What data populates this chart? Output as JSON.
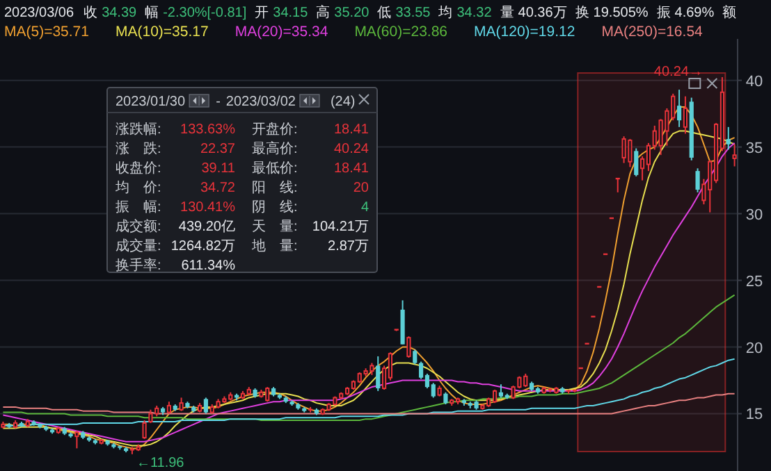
{
  "chart_data": {
    "type": "candlestick",
    "categories": [
      null,
      null,
      null,
      null,
      null,
      null,
      null,
      null,
      null,
      null,
      null,
      null,
      null,
      null,
      null,
      null,
      null,
      null,
      null,
      null,
      null,
      null,
      null,
      null,
      null,
      null,
      null,
      null,
      null,
      null,
      null,
      null,
      null,
      null,
      null,
      null,
      null,
      null,
      null,
      null,
      null,
      null,
      null,
      null,
      null,
      null,
      null,
      null,
      null,
      null,
      null,
      null,
      null,
      null,
      null,
      null,
      null,
      null,
      null,
      null,
      null,
      null,
      null,
      null,
      null,
      null,
      null,
      null,
      null,
      null,
      null,
      null,
      null,
      null,
      null,
      null,
      null,
      null,
      null,
      null,
      null,
      null,
      null,
      null,
      null,
      null,
      null,
      null,
      null,
      null,
      null,
      null,
      null,
      null,
      null,
      null,
      null,
      null,
      null,
      null,
      null,
      null,
      null,
      null,
      null,
      null,
      null,
      null,
      null,
      null,
      null,
      null,
      null,
      null,
      null,
      null,
      null,
      null,
      null,
      null
    ],
    "ohlc": [
      [
        14.0,
        14.4,
        13.9,
        14.2
      ],
      [
        14.2,
        14.3,
        13.9,
        14.0
      ],
      [
        14.0,
        14.5,
        13.9,
        14.3
      ],
      [
        14.3,
        14.4,
        14.0,
        14.1
      ],
      [
        14.1,
        14.6,
        14.0,
        14.4
      ],
      [
        14.4,
        14.5,
        14.1,
        14.2
      ],
      [
        14.2,
        14.3,
        13.9,
        14.0
      ],
      [
        14.0,
        14.1,
        13.7,
        13.8
      ],
      [
        13.8,
        13.9,
        13.5,
        13.6
      ],
      [
        13.6,
        14.0,
        13.5,
        13.9
      ],
      [
        13.9,
        14.0,
        13.4,
        13.5
      ],
      [
        13.5,
        13.6,
        13.2,
        13.3
      ],
      [
        13.3,
        13.7,
        12.4,
        13.6
      ],
      [
        13.6,
        13.7,
        13.1,
        13.2
      ],
      [
        13.2,
        13.3,
        12.9,
        13.0
      ],
      [
        13.0,
        13.1,
        12.7,
        12.8
      ],
      [
        12.8,
        13.1,
        12.7,
        13.0
      ],
      [
        13.0,
        13.0,
        12.6,
        12.7
      ],
      [
        12.7,
        12.8,
        12.4,
        12.5
      ],
      [
        12.5,
        12.6,
        12.3,
        12.4
      ],
      [
        12.4,
        12.5,
        12.1,
        12.2
      ],
      [
        12.2,
        12.5,
        11.96,
        12.3
      ],
      [
        12.3,
        12.7,
        12.2,
        12.5
      ],
      [
        13.2,
        14.5,
        13.1,
        14.3
      ],
      [
        14.4,
        15.3,
        14.3,
        15.0
      ],
      [
        15.0,
        15.6,
        14.8,
        15.4
      ],
      [
        15.4,
        15.5,
        14.9,
        15.1
      ],
      [
        15.1,
        15.9,
        15.0,
        15.6
      ],
      [
        15.6,
        15.7,
        15.2,
        15.3
      ],
      [
        15.3,
        16.2,
        15.2,
        15.8
      ],
      [
        15.8,
        15.9,
        15.4,
        15.5
      ],
      [
        15.5,
        15.6,
        15.1,
        15.2
      ],
      [
        15.2,
        15.8,
        15.1,
        15.6
      ],
      [
        16.1,
        16.2,
        15.0,
        15.1
      ],
      [
        15.1,
        15.7,
        15.0,
        15.5
      ],
      [
        15.5,
        16.1,
        15.4,
        15.9
      ],
      [
        15.9,
        16.3,
        15.8,
        16.1
      ],
      [
        16.1,
        16.6,
        16.0,
        16.4
      ],
      [
        16.4,
        16.5,
        16.0,
        16.2
      ],
      [
        16.2,
        16.7,
        16.1,
        16.5
      ],
      [
        16.5,
        17.0,
        16.4,
        16.8
      ],
      [
        16.8,
        16.9,
        16.2,
        16.3
      ],
      [
        16.3,
        16.8,
        16.2,
        16.6
      ],
      [
        16.0,
        17.0,
        15.9,
        16.9
      ],
      [
        16.9,
        17.0,
        16.3,
        16.4
      ],
      [
        16.4,
        16.5,
        16.1,
        16.2
      ],
      [
        16.2,
        16.3,
        15.8,
        15.9
      ],
      [
        15.9,
        16.0,
        15.6,
        15.7
      ],
      [
        15.7,
        15.8,
        15.3,
        15.4
      ],
      [
        15.4,
        15.5,
        15.1,
        15.2
      ],
      [
        15.2,
        15.5,
        15.1,
        15.3
      ],
      [
        15.3,
        15.4,
        14.9,
        15.0
      ],
      [
        15.0,
        15.4,
        14.9,
        15.3
      ],
      [
        15.3,
        15.8,
        15.2,
        15.7
      ],
      [
        15.7,
        16.3,
        15.6,
        16.2
      ],
      [
        16.2,
        16.6,
        16.1,
        16.5
      ],
      [
        16.5,
        17.0,
        16.4,
        16.9
      ],
      [
        16.9,
        17.5,
        16.8,
        17.4
      ],
      [
        17.4,
        18.1,
        17.3,
        18.0
      ],
      [
        18.0,
        18.4,
        17.8,
        18.2
      ],
      [
        18.2,
        18.8,
        17.9,
        18.6
      ],
      [
        18.6,
        19.3,
        16.7,
        16.9
      ],
      [
        16.9,
        18.6,
        16.8,
        18.4
      ],
      [
        17.7,
        19.6,
        17.5,
        19.5
      ],
      [
        21.2,
        21.3,
        21.2,
        21.3
      ],
      [
        22.8,
        23.5,
        20.2,
        20.2
      ],
      [
        19.3,
        20.8,
        19.2,
        20.7
      ],
      [
        19.7,
        19.8,
        18.7,
        18.8
      ],
      [
        18.8,
        18.9,
        17.6,
        17.7
      ],
      [
        17.9,
        18.0,
        16.9,
        17.0
      ],
      [
        17.2,
        17.3,
        16.2,
        16.3
      ],
      [
        16.4,
        17.1,
        16.3,
        16.9
      ],
      [
        16.5,
        16.6,
        15.7,
        15.8
      ],
      [
        15.8,
        16.1,
        15.6,
        16.0
      ],
      [
        15.9,
        16.2,
        15.7,
        16.1
      ],
      [
        16.0,
        16.1,
        15.6,
        15.8
      ],
      [
        15.8,
        15.9,
        15.4,
        15.6
      ],
      [
        15.9,
        16.0,
        15.3,
        15.4
      ],
      [
        15.4,
        15.7,
        15.3,
        15.6
      ],
      [
        15.6,
        16.2,
        15.5,
        16.1
      ],
      [
        15.9,
        16.8,
        15.8,
        16.7
      ],
      [
        16.6,
        17.2,
        16.2,
        16.3
      ],
      [
        16.4,
        16.5,
        16.1,
        16.2
      ],
      [
        16.2,
        17.1,
        16.1,
        17.0
      ],
      [
        17.0,
        17.8,
        16.9,
        17.7
      ],
      [
        17.1,
        18.0,
        17.0,
        17.8
      ],
      [
        17.3,
        17.4,
        16.7,
        16.8
      ],
      [
        16.9,
        17.0,
        16.5,
        16.6
      ],
      [
        16.6,
        17.0,
        16.5,
        16.9
      ],
      [
        16.7,
        16.9,
        16.6,
        16.8
      ],
      [
        16.6,
        17.0,
        16.5,
        16.9
      ],
      [
        16.9,
        17.0,
        16.5,
        16.6
      ],
      [
        16.6,
        16.8,
        16.5,
        16.7
      ],
      [
        16.7,
        16.8,
        16.6,
        16.74
      ],
      [
        18.41,
        18.41,
        18.41,
        18.41
      ],
      [
        20.25,
        20.25,
        20.25,
        20.25
      ],
      [
        22.28,
        22.28,
        22.28,
        22.28
      ],
      [
        24.51,
        24.51,
        24.51,
        24.51
      ],
      [
        26.96,
        26.96,
        26.96,
        26.96
      ],
      [
        29.66,
        29.66,
        29.66,
        29.66
      ],
      [
        32.63,
        32.63,
        31.6,
        32.63
      ],
      [
        34.2,
        35.8,
        33.8,
        35.6
      ],
      [
        33.9,
        35.6,
        33.5,
        35.5
      ],
      [
        34.7,
        34.9,
        32.8,
        32.9
      ],
      [
        33.4,
        34.3,
        32.5,
        34.1
      ],
      [
        33.7,
        35.3,
        33.2,
        35.1
      ],
      [
        35.1,
        36.6,
        34.8,
        36.2
      ],
      [
        35.1,
        37.1,
        34.4,
        37.0
      ],
      [
        36.2,
        37.9,
        35.1,
        37.7
      ],
      [
        37.2,
        39.0,
        37.0,
        38.8
      ],
      [
        38.1,
        39.3,
        36.5,
        37.0
      ],
      [
        36.5,
        38.8,
        36.0,
        37.9
      ],
      [
        38.4,
        38.7,
        34.0,
        34.2
      ],
      [
        33.2,
        33.4,
        31.6,
        31.8
      ],
      [
        31.0,
        32.6,
        30.7,
        32.2
      ],
      [
        31.8,
        34.0,
        30.1,
        33.9
      ],
      [
        32.5,
        36.8,
        32.3,
        36.7
      ],
      [
        34.9,
        40.24,
        34.7,
        39.11
      ],
      [
        35.6,
        36.5,
        34.8,
        35.2
      ],
      [
        34.15,
        35.2,
        33.55,
        34.39
      ]
    ],
    "colors": [
      "#e8333a",
      "#5ccfd6",
      "#e8333a",
      "#5ccfd6",
      "#e8333a",
      "#5ccfd6",
      "#5ccfd6",
      "#5ccfd6",
      "#5ccfd6",
      "#e8333a",
      "#5ccfd6",
      "#5ccfd6",
      "#e8333a",
      "#5ccfd6",
      "#5ccfd6",
      "#5ccfd6",
      "#e8333a",
      "#5ccfd6",
      "#5ccfd6",
      "#5ccfd6",
      "#5ccfd6",
      "#e8333a",
      "#e8333a",
      "#e8333a",
      "#e8333a",
      "#e8333a",
      "#5ccfd6",
      "#e8333a",
      "#5ccfd6",
      "#e8333a",
      "#5ccfd6",
      "#5ccfd6",
      "#e8333a",
      "#5ccfd6",
      "#e8333a",
      "#e8333a",
      "#e8333a",
      "#e8333a",
      "#5ccfd6",
      "#e8333a",
      "#e8333a",
      "#5ccfd6",
      "#e8333a",
      "#e8333a",
      "#5ccfd6",
      "#5ccfd6",
      "#5ccfd6",
      "#5ccfd6",
      "#5ccfd6",
      "#5ccfd6",
      "#e8333a",
      "#5ccfd6",
      "#e8333a",
      "#e8333a",
      "#e8333a",
      "#e8333a",
      "#e8333a",
      "#e8333a",
      "#e8333a",
      "#e8333a",
      "#e8333a",
      "#5ccfd6",
      "#e8333a",
      "#e8333a",
      "#e8333a",
      "#5ccfd6",
      "#e8333a",
      "#5ccfd6",
      "#5ccfd6",
      "#5ccfd6",
      "#5ccfd6",
      "#e8333a",
      "#5ccfd6",
      "#e8333a",
      "#e8333a",
      "#5ccfd6",
      "#5ccfd6",
      "#5ccfd6",
      "#e8333a",
      "#e8333a",
      "#e8333a",
      "#5ccfd6",
      "#5ccfd6",
      "#e8333a",
      "#e8333a",
      "#e8333a",
      "#5ccfd6",
      "#5ccfd6",
      "#e8333a",
      "#e8333a",
      "#e8333a",
      "#5ccfd6",
      "#e8333a",
      "#e8333a",
      "#e8333a",
      "#e8333a",
      "#e8333a",
      "#e8333a",
      "#e8333a",
      "#e8333a",
      "#e8333a",
      "#e8333a",
      "#e8333a",
      "#5ccfd6",
      "#e8333a",
      "#e8333a",
      "#e8333a",
      "#e8333a",
      "#e8333a",
      "#e8333a",
      "#5ccfd6",
      "#e8333a",
      "#5ccfd6",
      "#5ccfd6",
      "#e8333a",
      "#e8333a",
      "#e8333a",
      "#e8333a",
      "#5ccfd6",
      "#e8333a"
    ],
    "series": [
      {
        "name": "MA(5)=35.71",
        "color": "#f0a030",
        "type": "line",
        "values": [
          14.2,
          14.2,
          14.1,
          14.2,
          14.2,
          14.2,
          14.2,
          14.0,
          13.9,
          13.8,
          13.7,
          13.6,
          13.5,
          13.4,
          13.3,
          13.1,
          13.0,
          12.9,
          12.8,
          12.6,
          12.5,
          12.4,
          12.4,
          12.7,
          13.2,
          13.8,
          14.4,
          15.0,
          15.3,
          15.4,
          15.5,
          15.5,
          15.4,
          15.4,
          15.4,
          15.5,
          15.7,
          15.9,
          16.1,
          16.3,
          16.4,
          16.5,
          16.6,
          16.6,
          16.6,
          16.5,
          16.3,
          16.0,
          15.7,
          15.5,
          15.3,
          15.2,
          15.2,
          15.3,
          15.5,
          15.8,
          16.2,
          16.6,
          17.1,
          17.7,
          18.2,
          18.6,
          18.9,
          19.3,
          19.7,
          20.0,
          20.0,
          19.8,
          19.3,
          18.8,
          18.2,
          17.5,
          16.9,
          16.4,
          16.0,
          15.8,
          15.7,
          15.7,
          15.7,
          15.8,
          15.9,
          16.0,
          16.2,
          16.4,
          16.6,
          16.8,
          17.0,
          17.1,
          17.0,
          16.9,
          16.8,
          16.8,
          16.8,
          16.8,
          17.2,
          18.2,
          19.6,
          21.4,
          23.5,
          25.8,
          28.5,
          31.0,
          33.0,
          34.1,
          34.5,
          34.8,
          35.0,
          35.7,
          36.5,
          37.3,
          38.0,
          38.0,
          37.4,
          36.5,
          35.2,
          33.9,
          34.0,
          35.0,
          35.5,
          35.7
        ]
      },
      {
        "name": "MA(10)=35.17",
        "color": "#e8e050",
        "type": "line",
        "values": [
          13.9,
          13.9,
          13.9,
          14.0,
          14.0,
          14.0,
          14.0,
          14.0,
          13.9,
          13.9,
          13.8,
          13.7,
          13.6,
          13.5,
          13.4,
          13.3,
          13.1,
          13.0,
          12.9,
          12.8,
          12.7,
          12.6,
          12.6,
          12.6,
          12.7,
          12.9,
          13.2,
          13.6,
          14.1,
          14.5,
          14.9,
          15.2,
          15.4,
          15.5,
          15.5,
          15.6,
          15.7,
          15.8,
          15.9,
          16.0,
          16.2,
          16.3,
          16.4,
          16.5,
          16.5,
          16.5,
          16.5,
          16.4,
          16.3,
          16.1,
          16.0,
          15.8,
          15.7,
          15.6,
          15.6,
          15.6,
          15.8,
          16.0,
          16.4,
          16.9,
          17.4,
          17.9,
          18.3,
          18.6,
          18.8,
          18.8,
          18.8,
          18.7,
          18.6,
          18.4,
          18.1,
          17.8,
          17.4,
          17.0,
          16.6,
          16.3,
          16.1,
          16.0,
          16.0,
          16.0,
          16.0,
          16.1,
          16.2,
          16.3,
          16.4,
          16.5,
          16.6,
          16.7,
          16.8,
          16.8,
          16.8,
          16.8,
          16.8,
          16.9,
          17.0,
          17.4,
          18.0,
          18.8,
          19.8,
          21.2,
          22.8,
          24.7,
          27.0,
          29.0,
          31.0,
          32.7,
          33.9,
          34.7,
          35.4,
          36.0,
          36.2,
          36.2,
          36.1,
          36.0,
          35.9,
          35.8,
          35.7,
          35.6,
          35.4,
          35.2
        ]
      },
      {
        "name": "MA(20)=35.34",
        "color": "#e040e0",
        "type": "line",
        "values": [
          14.9,
          14.8,
          14.7,
          14.6,
          14.5,
          14.4,
          14.3,
          14.2,
          14.1,
          14.0,
          13.9,
          13.8,
          13.7,
          13.6,
          13.5,
          13.4,
          13.3,
          13.2,
          13.1,
          13.0,
          12.9,
          12.9,
          12.9,
          12.9,
          13.0,
          13.1,
          13.2,
          13.4,
          13.6,
          13.8,
          14.0,
          14.2,
          14.4,
          14.6,
          14.8,
          15.0,
          15.1,
          15.2,
          15.3,
          15.4,
          15.5,
          15.6,
          15.7,
          15.8,
          15.9,
          15.9,
          16.0,
          16.0,
          16.0,
          16.0,
          16.0,
          16.0,
          16.0,
          16.0,
          16.0,
          16.1,
          16.2,
          16.4,
          16.6,
          16.8,
          17.0,
          17.1,
          17.2,
          17.3,
          17.4,
          17.5,
          17.5,
          17.5,
          17.5,
          17.5,
          17.5,
          17.5,
          17.5,
          17.5,
          17.4,
          17.4,
          17.3,
          17.3,
          17.2,
          17.2,
          17.1,
          17.0,
          16.9,
          16.8,
          16.7,
          16.7,
          16.7,
          16.7,
          16.7,
          16.7,
          16.7,
          16.7,
          16.7,
          16.7,
          16.8,
          17.0,
          17.3,
          17.8,
          18.4,
          19.1,
          20.0,
          21.0,
          22.1,
          23.2,
          24.2,
          25.1,
          26.0,
          26.8,
          27.6,
          28.4,
          29.1,
          29.8,
          30.5,
          31.3,
          32.1,
          32.8,
          33.5,
          34.3,
          34.9,
          35.3
        ]
      },
      {
        "name": "MA(60)=23.86",
        "color": "#5cb83c",
        "type": "line",
        "values": [
          15.1,
          15.1,
          15.1,
          15.1,
          15.0,
          15.0,
          15.0,
          15.0,
          15.0,
          15.0,
          15.0,
          14.9,
          14.9,
          14.9,
          14.9,
          14.9,
          14.9,
          14.8,
          14.8,
          14.8,
          14.8,
          14.8,
          14.8,
          14.7,
          14.7,
          14.7,
          14.7,
          14.7,
          14.7,
          14.7,
          14.6,
          14.6,
          14.6,
          14.6,
          14.6,
          14.6,
          14.6,
          14.6,
          14.6,
          14.6,
          14.6,
          14.6,
          14.5,
          14.5,
          14.5,
          14.5,
          14.5,
          14.5,
          14.5,
          14.5,
          14.5,
          14.5,
          14.5,
          14.5,
          14.5,
          14.5,
          14.5,
          14.5,
          14.5,
          14.6,
          14.6,
          14.7,
          14.8,
          14.9,
          15.0,
          15.1,
          15.2,
          15.3,
          15.4,
          15.5,
          15.6,
          15.7,
          15.8,
          15.9,
          15.9,
          16.0,
          16.0,
          16.0,
          16.1,
          16.1,
          16.1,
          16.2,
          16.2,
          16.2,
          16.3,
          16.3,
          16.3,
          16.4,
          16.4,
          16.4,
          16.4,
          16.5,
          16.5,
          16.5,
          16.6,
          16.7,
          16.8,
          16.9,
          17.1,
          17.3,
          17.6,
          17.9,
          18.2,
          18.5,
          18.8,
          19.1,
          19.4,
          19.7,
          20.0,
          20.3,
          20.7,
          21.0,
          21.4,
          21.8,
          22.2,
          22.6,
          23.0,
          23.3,
          23.6,
          23.9
        ]
      },
      {
        "name": "MA(120)=19.12",
        "color": "#60d8e8",
        "type": "line",
        "values": [
          14.1,
          14.1,
          14.1,
          14.1,
          14.1,
          14.2,
          14.2,
          14.2,
          14.2,
          14.2,
          14.2,
          14.2,
          14.2,
          14.3,
          14.3,
          14.3,
          14.3,
          14.3,
          14.3,
          14.3,
          14.3,
          14.3,
          14.4,
          14.4,
          14.4,
          14.4,
          14.4,
          14.4,
          14.4,
          14.5,
          14.5,
          14.5,
          14.5,
          14.5,
          14.5,
          14.5,
          14.5,
          14.6,
          14.6,
          14.6,
          14.6,
          14.6,
          14.6,
          14.6,
          14.6,
          14.6,
          14.7,
          14.7,
          14.7,
          14.7,
          14.7,
          14.7,
          14.7,
          14.7,
          14.7,
          14.8,
          14.8,
          14.8,
          14.8,
          14.8,
          14.8,
          14.8,
          14.9,
          14.9,
          14.9,
          14.9,
          15.0,
          15.0,
          15.0,
          15.0,
          15.1,
          15.1,
          15.1,
          15.1,
          15.2,
          15.2,
          15.2,
          15.2,
          15.2,
          15.3,
          15.3,
          15.3,
          15.3,
          15.3,
          15.3,
          15.3,
          15.4,
          15.4,
          15.4,
          15.4,
          15.4,
          15.4,
          15.4,
          15.4,
          15.5,
          15.6,
          15.6,
          15.7,
          15.8,
          15.9,
          16.0,
          16.1,
          16.3,
          16.4,
          16.6,
          16.7,
          16.9,
          17.0,
          17.2,
          17.4,
          17.6,
          17.7,
          17.9,
          18.1,
          18.3,
          18.5,
          18.6,
          18.8,
          19.0,
          19.1
        ]
      },
      {
        "name": "MA(250)=16.54",
        "color": "#e88080",
        "type": "line",
        "values": [
          15.5,
          15.5,
          15.5,
          15.4,
          15.4,
          15.4,
          15.4,
          15.4,
          15.3,
          15.3,
          15.3,
          15.3,
          15.3,
          15.2,
          15.2,
          15.2,
          15.2,
          15.2,
          15.1,
          15.1,
          15.1,
          15.1,
          15.1,
          15.1,
          15.1,
          15.0,
          15.0,
          15.0,
          15.0,
          15.0,
          15.0,
          15.0,
          15.0,
          15.0,
          15.0,
          15.0,
          15.0,
          15.0,
          15.0,
          15.0,
          15.0,
          15.0,
          15.0,
          15.0,
          15.0,
          15.0,
          15.0,
          15.0,
          15.0,
          15.0,
          15.0,
          15.0,
          15.0,
          15.0,
          15.0,
          15.0,
          15.0,
          15.0,
          15.0,
          15.0,
          15.0,
          15.0,
          15.0,
          15.0,
          15.0,
          15.0,
          15.0,
          15.0,
          15.0,
          15.0,
          15.0,
          15.0,
          15.0,
          15.0,
          15.0,
          15.0,
          15.0,
          15.0,
          15.0,
          15.0,
          15.0,
          15.0,
          15.0,
          15.0,
          15.0,
          15.0,
          15.0,
          15.0,
          15.0,
          15.0,
          15.0,
          15.0,
          15.0,
          15.0,
          15.0,
          15.0,
          15.0,
          15.0,
          15.0,
          15.0,
          15.1,
          15.2,
          15.3,
          15.4,
          15.5,
          15.6,
          15.6,
          15.7,
          15.8,
          15.9,
          16.0,
          16.0,
          16.1,
          16.2,
          16.2,
          16.3,
          16.4,
          16.4,
          16.5,
          16.5
        ]
      }
    ],
    "ylim": [
      10.7,
      42.9
    ],
    "yticks": [
      15,
      20,
      25,
      30,
      35,
      40
    ],
    "grid": "y",
    "tick_labels": "y",
    "annotations": [
      "2023/03/06",
      "收",
      "34.39",
      "幅",
      "-2.30%[-0.81]",
      "开",
      "34.15",
      "高",
      "35.20",
      "低",
      "33.55",
      "均",
      "34.32",
      "量",
      "40.36万",
      "换",
      "19.505%",
      "振",
      "4.69%",
      "额",
      "2023/01/30",
      "-",
      "2023/03/02",
      "(24)",
      "涨跌幅:",
      "133.63%",
      "开盘价:",
      "18.41",
      "涨　跌:",
      "22.37",
      "最高价:",
      "40.24",
      "收盘价:",
      "39.11",
      "最低价:",
      "18.41",
      "均　价:",
      "34.72",
      "阳　线:",
      "20",
      "振　幅:",
      "130.41%",
      "阴　线:",
      "4",
      "成交额:",
      "439.20亿",
      "天　量:",
      "104.21万",
      "成交量:",
      "1264.82万",
      "地　量:",
      "2.87万",
      "换手率:",
      "611.34%",
      "40.24→",
      "←11.96"
    ]
  }
}
